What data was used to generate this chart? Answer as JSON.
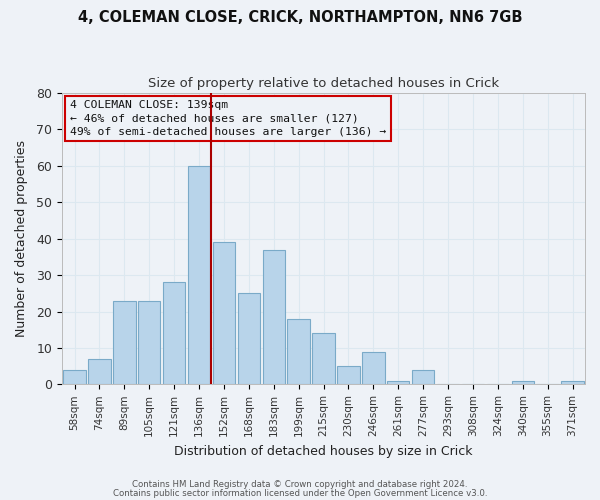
{
  "title_line1": "4, COLEMAN CLOSE, CRICK, NORTHAMPTON, NN6 7GB",
  "title_line2": "Size of property relative to detached houses in Crick",
  "xlabel": "Distribution of detached houses by size in Crick",
  "ylabel": "Number of detached properties",
  "bar_labels": [
    "58sqm",
    "74sqm",
    "89sqm",
    "105sqm",
    "121sqm",
    "136sqm",
    "152sqm",
    "168sqm",
    "183sqm",
    "199sqm",
    "215sqm",
    "230sqm",
    "246sqm",
    "261sqm",
    "277sqm",
    "293sqm",
    "308sqm",
    "324sqm",
    "340sqm",
    "355sqm",
    "371sqm"
  ],
  "bar_values": [
    4,
    7,
    23,
    23,
    28,
    60,
    39,
    25,
    37,
    18,
    14,
    5,
    9,
    1,
    4,
    0,
    0,
    0,
    1,
    0,
    1
  ],
  "bar_color": "#b8d4ea",
  "bar_edge_color": "#7aaac8",
  "marker_line_color": "#aa0000",
  "annotation_line1": "4 COLEMAN CLOSE: 139sqm",
  "annotation_line2": "← 46% of detached houses are smaller (127)",
  "annotation_line3": "49% of semi-detached houses are larger (136) →",
  "annotation_box_edge": "#cc0000",
  "ylim": [
    0,
    80
  ],
  "yticks": [
    0,
    10,
    20,
    30,
    40,
    50,
    60,
    70,
    80
  ],
  "grid_color": "#dce8f0",
  "background_color": "#eef2f7",
  "footer_line1": "Contains HM Land Registry data © Crown copyright and database right 2024.",
  "footer_line2": "Contains public sector information licensed under the Open Government Licence v3.0."
}
